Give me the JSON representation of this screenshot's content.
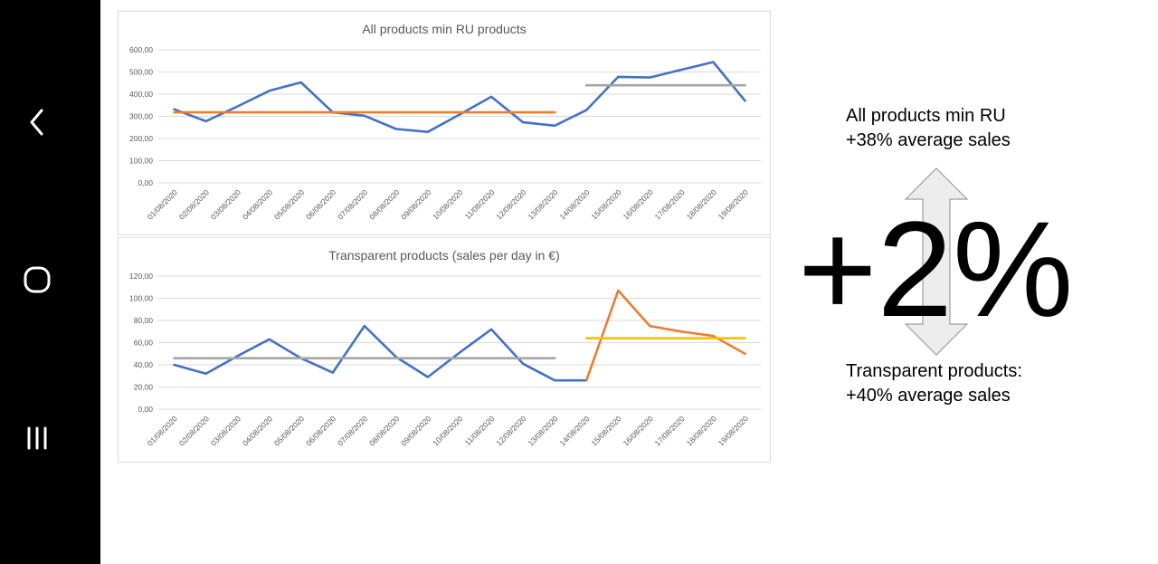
{
  "colors": {
    "blue": "#4472C4",
    "orange": "#ED7D31",
    "gray": "#A5A5A5",
    "yellow": "#FFC000",
    "grid": "#D9D9D9",
    "text": "#595959"
  },
  "nav": {
    "back_icon": "chevron-left-icon",
    "home_icon": "circle-home-icon",
    "recents_icon": "three-bars-recents-icon"
  },
  "annotations": {
    "top_line1": "All products min RU",
    "top_line2": "+38% average sales",
    "big_number": "+2%",
    "bottom_line1": "Transparent products:",
    "bottom_line2": "+40% average sales",
    "arrow_icon": "double-arrow-vertical-icon"
  },
  "chart_data": [
    {
      "type": "line",
      "title": "All products min RU products",
      "categories": [
        "01/08/2020",
        "02/08/2020",
        "03/08/2020",
        "04/08/2020",
        "05/08/2020",
        "06/08/2020",
        "07/08/2020",
        "08/08/2020",
        "09/08/2020",
        "10/08/2020",
        "11/08/2020",
        "12/08/2020",
        "13/08/2020",
        "14/08/2020",
        "15/08/2020",
        "16/08/2020",
        "17/08/2020",
        "18/08/2020",
        "19/08/2020"
      ],
      "yticks": [
        "0,00",
        "100,00",
        "200,00",
        "300,00",
        "400,00",
        "500,00",
        "600,00"
      ],
      "ylim": [
        0,
        600
      ],
      "grid": true,
      "legend": "none",
      "series": [
        {
          "color": "#4472C4",
          "values": [
            332,
            278,
            345,
            415,
            453,
            318,
            303,
            243,
            230,
            308,
            388,
            273,
            258,
            328,
            478,
            475,
            510,
            545,
            370
          ]
        },
        {
          "color": "#ED7D31",
          "values": [
            318,
            318,
            318,
            318,
            318,
            318,
            318,
            318,
            318,
            318,
            318,
            318,
            318,
            null,
            null,
            null,
            null,
            null,
            null
          ]
        },
        {
          "color": "#A5A5A5",
          "values": [
            null,
            null,
            null,
            null,
            null,
            null,
            null,
            null,
            null,
            null,
            null,
            null,
            null,
            440,
            440,
            440,
            440,
            440,
            440
          ]
        }
      ]
    },
    {
      "type": "line",
      "title": "Transparent products (sales per day in €)",
      "categories": [
        "01/08/2020",
        "02/08/2020",
        "03/08/2020",
        "04/08/2020",
        "05/08/2020",
        "06/08/2020",
        "07/08/2020",
        "08/08/2020",
        "09/08/2020",
        "10/08/2020",
        "11/08/2020",
        "12/08/2020",
        "13/08/2020",
        "14/08/2020",
        "15/08/2020",
        "16/08/2020",
        "17/08/2020",
        "18/08/2020",
        "19/08/2020"
      ],
      "yticks": [
        "0,00",
        "20,00",
        "40,00",
        "60,00",
        "80,00",
        "100,00",
        "120,00"
      ],
      "ylim": [
        0,
        120
      ],
      "grid": true,
      "legend": "none",
      "series": [
        {
          "color": "#4472C4",
          "values": [
            40,
            32,
            48,
            63,
            46,
            33,
            75,
            47,
            29,
            51,
            72,
            41,
            26,
            26,
            null,
            null,
            null,
            null,
            null
          ]
        },
        {
          "color": "#ED7D31",
          "values": [
            null,
            null,
            null,
            null,
            null,
            null,
            null,
            null,
            null,
            null,
            null,
            null,
            null,
            26,
            107,
            75,
            70,
            66,
            50
          ]
        },
        {
          "color": "#A5A5A5",
          "values": [
            46,
            46,
            46,
            46,
            46,
            46,
            46,
            46,
            46,
            46,
            46,
            46,
            46,
            null,
            null,
            null,
            null,
            null,
            null
          ]
        },
        {
          "color": "#FFC000",
          "values": [
            null,
            null,
            null,
            null,
            null,
            null,
            null,
            null,
            null,
            null,
            null,
            null,
            null,
            64,
            64,
            64,
            64,
            64,
            64
          ]
        }
      ]
    }
  ]
}
